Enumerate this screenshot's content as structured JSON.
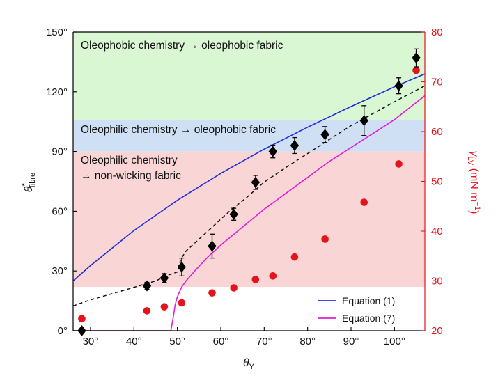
{
  "chart_data": {
    "type": "scatter",
    "xlabel": "θY",
    "ylabel_left": "θ*fibre",
    "ylabel_right": "γLV (mN m−1)",
    "xlim": [
      26,
      107
    ],
    "ylim_left": [
      0,
      150
    ],
    "ylim_right": [
      20,
      80
    ],
    "x_ticks": [
      30,
      40,
      50,
      60,
      70,
      80,
      90,
      100
    ],
    "x_tick_labels": [
      "30°",
      "40°",
      "50°",
      "60°",
      "70°",
      "80°",
      "90°",
      "100°"
    ],
    "y_left_ticks": [
      0,
      30,
      60,
      90,
      120,
      150
    ],
    "y_left_tick_labels": [
      "0°",
      "30°",
      "60°",
      "90°",
      "120°",
      "150°"
    ],
    "y_right_ticks": [
      20,
      30,
      40,
      50,
      60,
      70,
      80
    ],
    "y_right_tick_labels": [
      "20",
      "30",
      "40",
      "50",
      "60",
      "70",
      "80"
    ],
    "regions": [
      {
        "label": "Oleophobic chemistry → oleophobic fabric",
        "y_from": 106,
        "y_to": 150,
        "color": "#d9f7d3"
      },
      {
        "label": "Oleophilic chemistry → oleophobic fabric",
        "y_from": 90,
        "y_to": 106,
        "color": "#cfe0f5"
      },
      {
        "label_line1": "Oleophilic chemistry",
        "label_line2": "→ non-wicking fabric",
        "y_from": 22,
        "y_to": 90,
        "color": "#f9d6d5"
      }
    ],
    "series": [
      {
        "name": "Equation (1)",
        "kind": "line",
        "color": "#1f2ed6",
        "axis": "left",
        "x": [
          26,
          30,
          40,
          50,
          60,
          70,
          80,
          90,
          100,
          107
        ],
        "y": [
          25,
          32.7,
          50.3,
          65.5,
          79,
          91.2,
          102.2,
          112.6,
          122.5,
          129
        ]
      },
      {
        "name": "Equation (7)",
        "kind": "line",
        "color": "#e31ddb",
        "axis": "left",
        "x": [
          26,
          48.5,
          49.0,
          49.5,
          50,
          51,
          52,
          54,
          57,
          60,
          65,
          70,
          75,
          80,
          85,
          90,
          95,
          100,
          107
        ],
        "y": [
          0,
          0,
          6,
          13,
          17,
          22,
          25,
          30,
          37,
          43,
          52,
          61,
          69,
          77,
          85,
          92,
          99,
          106,
          118
        ]
      },
      {
        "kind": "dashed-line",
        "color": "#111111",
        "axis": "left",
        "x": [
          26,
          30,
          35,
          40,
          45,
          48,
          50,
          50.8,
          52,
          55,
          58,
          62,
          66,
          70,
          75,
          80,
          85,
          90,
          95,
          100,
          107
        ],
        "y": [
          12.5,
          15.5,
          18.6,
          21.8,
          25,
          28,
          29.5,
          36,
          40,
          46,
          52,
          60,
          67,
          74.6,
          82,
          89,
          96,
          103,
          109,
          115,
          123
        ]
      },
      {
        "kind": "diamond-errorbar",
        "color": "#000000",
        "axis": "left",
        "x": [
          28,
          43,
          47,
          51,
          58,
          63,
          68,
          72,
          77,
          84,
          93,
          101,
          105
        ],
        "y": [
          0,
          22.5,
          26.5,
          32,
          42.5,
          58.5,
          74.5,
          90,
          93,
          98.5,
          105.5,
          123,
          137
        ],
        "err": [
          0,
          1.8,
          2.2,
          4.5,
          6,
          3,
          3.5,
          3.2,
          4,
          4,
          7.5,
          4,
          4.5
        ]
      },
      {
        "kind": "circle",
        "color": "#e4141c",
        "axis": "right",
        "x": [
          28,
          43,
          47,
          51,
          58,
          63,
          68,
          72,
          77,
          84,
          93,
          101,
          105
        ],
        "y": [
          22.4,
          24.0,
          24.8,
          25.6,
          27.6,
          28.6,
          30.3,
          31.0,
          34.8,
          38.4,
          45.8,
          53.5,
          72.3
        ]
      }
    ],
    "legend": {
      "position": "bottom-right",
      "entries": [
        {
          "label": "Equation (1)",
          "color": "#1f2ed6"
        },
        {
          "label": "Equation (7)",
          "color": "#e31ddb"
        }
      ]
    }
  }
}
